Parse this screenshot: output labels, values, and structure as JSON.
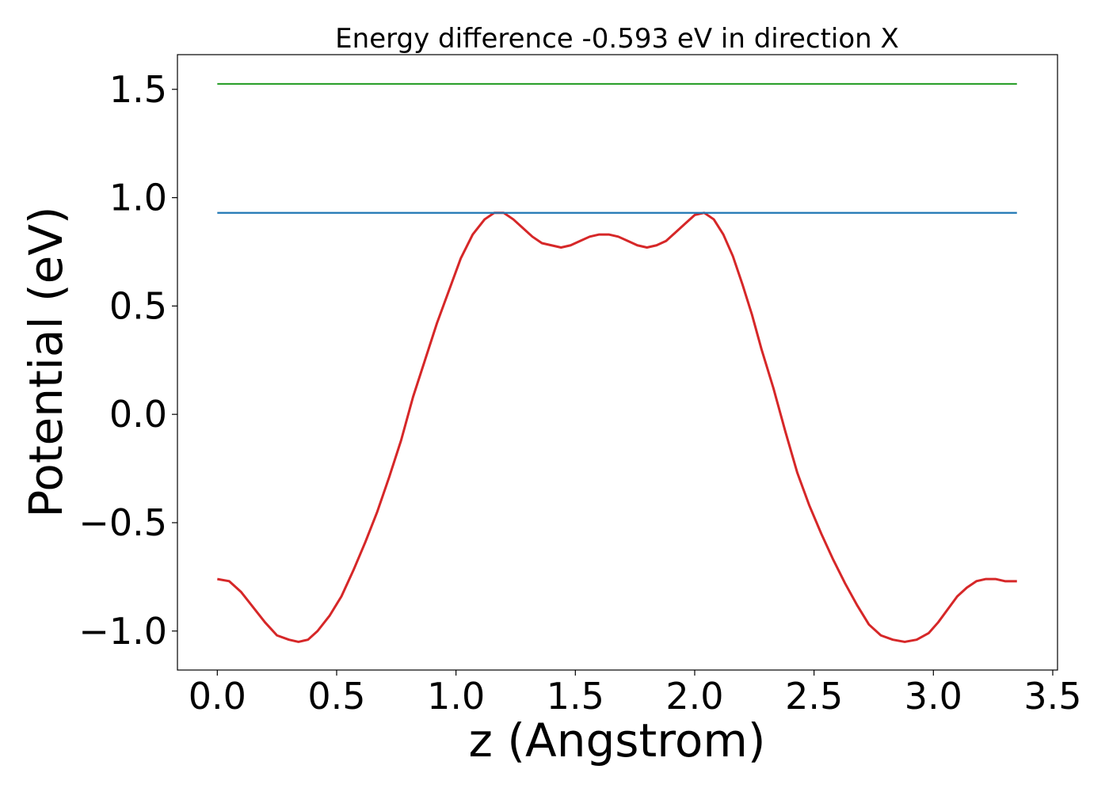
{
  "chart_data": {
    "type": "line",
    "title": "Energy difference -0.593 eV in direction X",
    "xlabel": "z (Angstrom)",
    "ylabel": "Potential (eV)",
    "xlim": [
      -0.167,
      3.52
    ],
    "ylim": [
      -1.18,
      1.66
    ],
    "x_ticks": [
      0.0,
      0.5,
      1.0,
      1.5,
      2.0,
      2.5,
      3.0,
      3.5
    ],
    "x_tick_labels": [
      "0.0",
      "0.5",
      "1.0",
      "1.5",
      "2.0",
      "2.5",
      "3.0",
      "3.5"
    ],
    "y_ticks": [
      -1.0,
      -0.5,
      0.0,
      0.5,
      1.0,
      1.5
    ],
    "y_tick_labels": [
      "−1.0",
      "−0.5",
      "0.0",
      "0.5",
      "1.0",
      "1.5"
    ],
    "grid": false,
    "legend": "none",
    "series": [
      {
        "color": "#d62728",
        "x": [
          0.0,
          0.05,
          0.1,
          0.15,
          0.2,
          0.25,
          0.3,
          0.34,
          0.38,
          0.42,
          0.47,
          0.52,
          0.57,
          0.62,
          0.67,
          0.72,
          0.77,
          0.82,
          0.87,
          0.92,
          0.97,
          1.02,
          1.07,
          1.12,
          1.16,
          1.2,
          1.24,
          1.28,
          1.32,
          1.36,
          1.4,
          1.44,
          1.48,
          1.52,
          1.56,
          1.6,
          1.64,
          1.68,
          1.72,
          1.76,
          1.8,
          1.84,
          1.88,
          1.92,
          1.96,
          2.0,
          2.04,
          2.08,
          2.12,
          2.16,
          2.2,
          2.24,
          2.28,
          2.33,
          2.38,
          2.43,
          2.48,
          2.53,
          2.58,
          2.63,
          2.68,
          2.73,
          2.78,
          2.83,
          2.88,
          2.93,
          2.98,
          3.02,
          3.06,
          3.1,
          3.14,
          3.18,
          3.22,
          3.26,
          3.3,
          3.35
        ],
        "y": [
          -0.76,
          -0.77,
          -0.82,
          -0.89,
          -0.96,
          -1.02,
          -1.04,
          -1.05,
          -1.04,
          -1.0,
          -0.93,
          -0.84,
          -0.72,
          -0.59,
          -0.45,
          -0.29,
          -0.12,
          0.08,
          0.25,
          0.42,
          0.57,
          0.72,
          0.83,
          0.9,
          0.93,
          0.93,
          0.9,
          0.86,
          0.82,
          0.79,
          0.78,
          0.77,
          0.78,
          0.8,
          0.82,
          0.83,
          0.83,
          0.82,
          0.8,
          0.78,
          0.77,
          0.78,
          0.8,
          0.84,
          0.88,
          0.92,
          0.93,
          0.9,
          0.83,
          0.73,
          0.6,
          0.46,
          0.3,
          0.12,
          -0.08,
          -0.27,
          -0.42,
          -0.55,
          -0.67,
          -0.78,
          -0.88,
          -0.97,
          -1.02,
          -1.04,
          -1.05,
          -1.04,
          -1.01,
          -0.96,
          -0.9,
          -0.84,
          -0.8,
          -0.77,
          -0.76,
          -0.76,
          -0.77,
          -0.77
        ]
      },
      {
        "color": "#1f77b4",
        "x": [
          0.0,
          3.35
        ],
        "y": [
          0.93,
          0.93
        ]
      },
      {
        "color": "#2ca02c",
        "x": [
          0.0,
          3.35
        ],
        "y": [
          1.525,
          1.525
        ]
      }
    ]
  }
}
